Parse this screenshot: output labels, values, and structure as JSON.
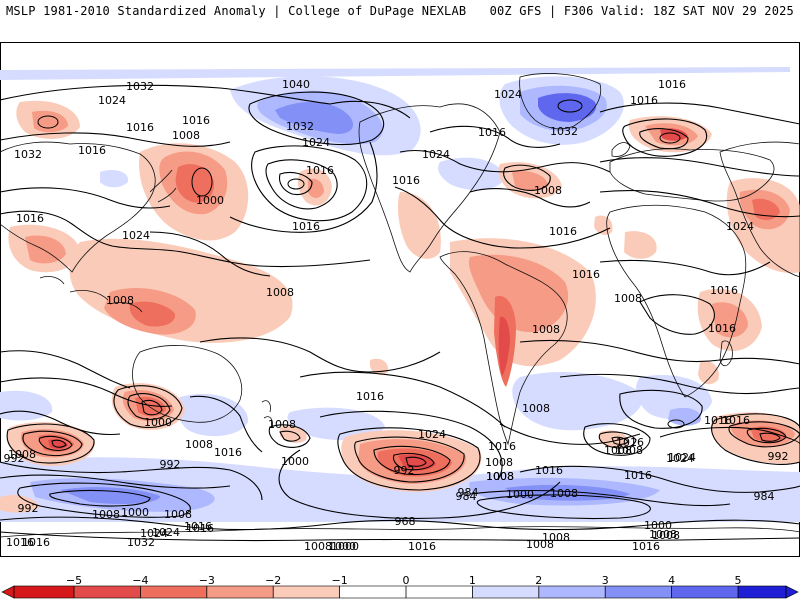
{
  "header": {
    "title_left": "MSLP 1981-2010 Standardized Anomaly | College of DuPage NEXLAB",
    "title_right": "00Z GFS | F306 Valid: 18Z SAT NOV 29 2025"
  },
  "colors": {
    "neg5": "#d7191c",
    "neg4": "#e34a4a",
    "neg3": "#ef6f5e",
    "neg2": "#f59b86",
    "neg1": "#fbcbb9",
    "zero": "#ffffff",
    "pos1": "#d6dcff",
    "pos2": "#aeb8ff",
    "pos3": "#8390f6",
    "pos4": "#5f67ee",
    "pos5": "#1f1fd6",
    "contour": "#000000",
    "coast": "#111111"
  },
  "colorbar": {
    "ticks": [
      "−5",
      "−4",
      "−3",
      "−2",
      "−1",
      "0",
      "1",
      "2",
      "3",
      "4",
      "5"
    ]
  },
  "isobar_labels": [
    {
      "text": "1032"
    },
    {
      "text": "1040"
    },
    {
      "text": "1024"
    },
    {
      "text": "1024"
    },
    {
      "text": "1016"
    },
    {
      "text": "1016"
    },
    {
      "text": "1016"
    },
    {
      "text": "1008"
    },
    {
      "text": "1032"
    },
    {
      "text": "1016"
    },
    {
      "text": "1024"
    },
    {
      "text": "1032"
    },
    {
      "text": "1024"
    },
    {
      "text": "1016"
    },
    {
      "text": "1016"
    },
    {
      "text": "1032"
    },
    {
      "text": "1016"
    },
    {
      "text": "1008"
    },
    {
      "text": "1000"
    },
    {
      "text": "1016"
    },
    {
      "text": "1024"
    },
    {
      "text": "1016"
    },
    {
      "text": "1016"
    },
    {
      "text": "1024"
    },
    {
      "text": "1016"
    },
    {
      "text": "1016"
    },
    {
      "text": "1008"
    },
    {
      "text": "1008"
    },
    {
      "text": "1008"
    },
    {
      "text": "1016"
    },
    {
      "text": "1016"
    },
    {
      "text": "1024"
    },
    {
      "text": "1016"
    },
    {
      "text": "1016"
    },
    {
      "text": "992"
    },
    {
      "text": "1000"
    },
    {
      "text": "1008"
    },
    {
      "text": "1024"
    },
    {
      "text": "1008"
    },
    {
      "text": "1008"
    },
    {
      "text": "1016"
    },
    {
      "text": "1008"
    },
    {
      "text": "1008"
    },
    {
      "text": "1008"
    },
    {
      "text": "1000"
    },
    {
      "text": "1008"
    },
    {
      "text": "992"
    },
    {
      "text": "1008"
    },
    {
      "text": "1016"
    },
    {
      "text": "1008"
    },
    {
      "text": "1016"
    },
    {
      "text": "1024"
    },
    {
      "text": "1016"
    },
    {
      "text": "1016"
    },
    {
      "text": "1008"
    },
    {
      "text": "1016"
    },
    {
      "text": "1016"
    },
    {
      "text": "1008"
    },
    {
      "text": "1024"
    },
    {
      "text": "992"
    },
    {
      "text": "984"
    },
    {
      "text": "1000"
    },
    {
      "text": "992"
    },
    {
      "text": "984"
    },
    {
      "text": "1000"
    },
    {
      "text": "1008"
    },
    {
      "text": "1016"
    },
    {
      "text": "1008"
    },
    {
      "text": "992"
    },
    {
      "text": "1008"
    },
    {
      "text": "1000"
    },
    {
      "text": "1024"
    },
    {
      "text": "1032"
    },
    {
      "text": "1016"
    },
    {
      "text": "984"
    },
    {
      "text": "968"
    },
    {
      "text": "1000"
    },
    {
      "text": "1008"
    },
    {
      "text": "1008"
    },
    {
      "text": "1000"
    },
    {
      "text": "1008"
    },
    {
      "text": "1016"
    },
    {
      "text": "1008"
    },
    {
      "text": "1016"
    },
    {
      "text": "1016"
    }
  ]
}
